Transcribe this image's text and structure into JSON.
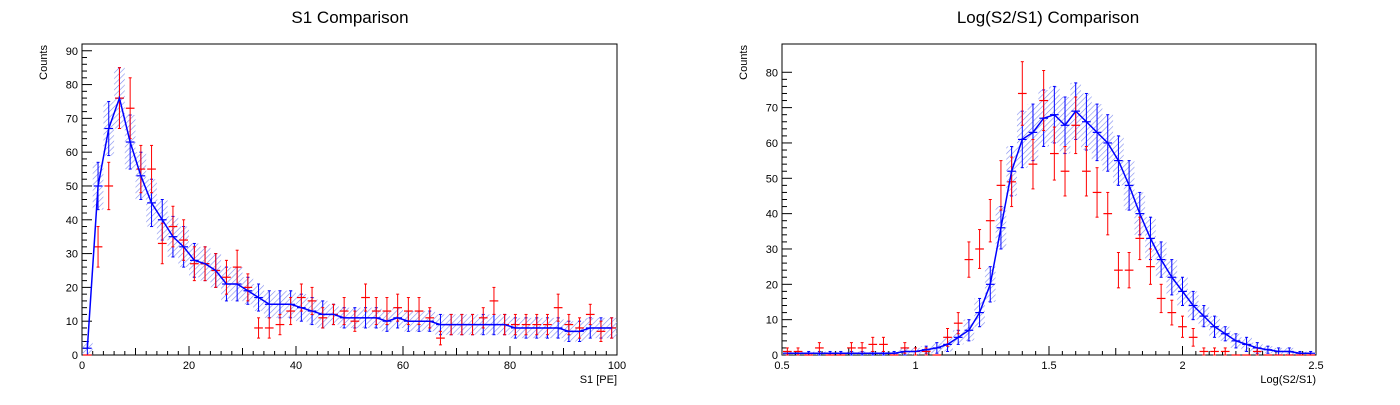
{
  "chart_data": [
    {
      "type": "line",
      "title": "S1 Comparison",
      "xlabel": "S1 [PE]",
      "ylabel": "Counts",
      "xlim": [
        0,
        100
      ],
      "ylim": [
        0,
        92
      ],
      "xticks": [
        0,
        20,
        40,
        60,
        80,
        100
      ],
      "xtick_labels": [
        "0",
        "20",
        "40",
        "60",
        "80",
        "100"
      ],
      "yticks": [
        0,
        10,
        20,
        30,
        40,
        50,
        60,
        70,
        80,
        90
      ],
      "ytick_labels": [
        "0",
        "10",
        "20",
        "30",
        "40",
        "50",
        "60",
        "70",
        "80",
        "90"
      ],
      "grid": false,
      "legend": "none",
      "series": [
        {
          "role": "model",
          "color": "#0000ff",
          "band_color": "#7f8cf0",
          "bin_width": 2,
          "x": [
            1,
            3,
            5,
            7,
            9,
            11,
            13,
            15,
            17,
            19,
            21,
            23,
            25,
            27,
            29,
            31,
            33,
            35,
            37,
            39,
            41,
            43,
            45,
            47,
            49,
            51,
            53,
            55,
            57,
            59,
            61,
            63,
            65,
            67,
            69,
            71,
            73,
            75,
            77,
            79,
            81,
            83,
            85,
            87,
            89,
            91,
            93,
            95,
            97,
            99
          ],
          "values": [
            2,
            50,
            67,
            76,
            63,
            53,
            45,
            40,
            35,
            32,
            28,
            27,
            25,
            21,
            21,
            19,
            17,
            15,
            15,
            15,
            14,
            13,
            12,
            12,
            11,
            11,
            11,
            11,
            10,
            11,
            10,
            10,
            10,
            9,
            9,
            9,
            9,
            9,
            9,
            9,
            8,
            8,
            8,
            8,
            8,
            7,
            7,
            8,
            8,
            8
          ],
          "errors": [
            2,
            7,
            8,
            9,
            8,
            7,
            7,
            6,
            6,
            6,
            5,
            5,
            5,
            5,
            5,
            4,
            4,
            4,
            4,
            4,
            4,
            4,
            4,
            3,
            3,
            3,
            3,
            3,
            3,
            3,
            3,
            3,
            3,
            3,
            3,
            3,
            3,
            3,
            3,
            3,
            3,
            3,
            3,
            3,
            3,
            3,
            3,
            3,
            3,
            3
          ]
        },
        {
          "role": "data",
          "color": "#ff0000",
          "bin_width": 2,
          "x": [
            1,
            3,
            5,
            7,
            9,
            11,
            13,
            15,
            17,
            19,
            21,
            23,
            25,
            27,
            29,
            31,
            33,
            35,
            37,
            39,
            41,
            43,
            45,
            47,
            49,
            51,
            53,
            55,
            57,
            59,
            61,
            63,
            65,
            67,
            69,
            71,
            73,
            75,
            77,
            79,
            81,
            83,
            85,
            87,
            89,
            91,
            93,
            95,
            97,
            99
          ],
          "values": [
            0,
            32,
            50,
            76,
            73,
            55,
            55,
            33,
            38,
            34,
            27,
            27,
            25,
            23,
            26,
            20,
            8,
            8,
            9,
            13,
            17,
            16,
            11,
            12,
            13,
            10,
            17,
            13,
            13,
            14,
            13,
            13,
            11,
            5,
            9,
            9,
            9,
            11,
            16,
            9,
            9,
            9,
            9,
            9,
            14,
            9,
            8,
            12,
            7,
            8
          ],
          "errors": [
            1,
            6,
            7,
            9,
            9,
            7,
            7,
            6,
            6,
            6,
            5,
            5,
            5,
            5,
            5,
            4,
            3,
            3,
            3,
            4,
            4,
            4,
            3,
            3,
            4,
            3,
            4,
            4,
            4,
            4,
            4,
            4,
            3,
            2,
            3,
            3,
            3,
            3,
            4,
            3,
            3,
            3,
            3,
            3,
            4,
            3,
            3,
            3,
            3,
            3
          ]
        }
      ]
    },
    {
      "type": "line",
      "title": "Log(S2/S1) Comparison",
      "xlabel": "Log(S2/S1)",
      "ylabel": "Counts",
      "xlim": [
        0.5,
        2.5
      ],
      "ylim": [
        0,
        88
      ],
      "xticks": [
        0.5,
        1,
        1.5,
        2,
        2.5
      ],
      "xtick_labels": [
        "0.5",
        "1",
        "1.5",
        "2",
        "2.5"
      ],
      "yticks": [
        0,
        10,
        20,
        30,
        40,
        50,
        60,
        70,
        80
      ],
      "ytick_labels": [
        "0",
        "10",
        "20",
        "30",
        "40",
        "50",
        "60",
        "70",
        "80"
      ],
      "grid": false,
      "legend": "none",
      "series": [
        {
          "role": "model",
          "color": "#0000ff",
          "band_color": "#7f8cf0",
          "bin_width": 0.04,
          "x": [
            0.52,
            0.56,
            0.6,
            0.64,
            0.68,
            0.72,
            0.76,
            0.8,
            0.84,
            0.88,
            0.92,
            0.96,
            1.0,
            1.04,
            1.08,
            1.12,
            1.16,
            1.2,
            1.24,
            1.28,
            1.32,
            1.36,
            1.4,
            1.44,
            1.48,
            1.52,
            1.56,
            1.6,
            1.64,
            1.68,
            1.72,
            1.76,
            1.8,
            1.84,
            1.88,
            1.92,
            1.96,
            2.0,
            2.04,
            2.08,
            2.12,
            2.16,
            2.2,
            2.24,
            2.28,
            2.32,
            2.36,
            2.4,
            2.44,
            2.48
          ],
          "values": [
            0.5,
            0.5,
            0.5,
            0.5,
            0.5,
            0.5,
            0.5,
            0.5,
            0.5,
            0.5,
            0.5,
            1,
            1,
            1.5,
            2,
            3,
            5,
            7,
            12,
            20,
            36,
            52,
            61,
            63,
            67,
            68,
            65,
            69,
            66,
            63,
            60,
            55,
            48,
            40,
            33,
            27,
            22,
            18,
            14,
            11,
            8,
            6,
            4,
            3,
            2,
            1.5,
            1,
            1,
            0.5,
            0.5
          ],
          "errors": [
            0.5,
            0.5,
            0.5,
            0.5,
            0.5,
            0.5,
            0.5,
            0.5,
            0.5,
            0.5,
            0.5,
            1,
            1,
            1,
            1.5,
            2,
            2,
            3,
            4,
            5,
            6,
            7,
            8,
            8,
            8,
            8,
            8,
            8,
            8,
            8,
            8,
            7,
            7,
            6,
            6,
            5,
            5,
            4,
            4,
            3,
            3,
            2,
            2,
            2,
            1.5,
            1,
            1,
            1,
            0.5,
            0.5
          ]
        },
        {
          "role": "data",
          "color": "#ff0000",
          "bin_width": 0.04,
          "x": [
            0.52,
            0.56,
            0.6,
            0.64,
            0.68,
            0.72,
            0.76,
            0.8,
            0.84,
            0.88,
            0.92,
            0.96,
            1.0,
            1.04,
            1.08,
            1.12,
            1.16,
            1.2,
            1.24,
            1.28,
            1.32,
            1.36,
            1.4,
            1.44,
            1.48,
            1.52,
            1.56,
            1.6,
            1.64,
            1.68,
            1.72,
            1.76,
            1.8,
            1.84,
            1.88,
            1.92,
            1.96,
            2.0,
            2.04,
            2.08,
            2.12,
            2.16,
            2.2,
            2.24,
            2.28,
            2.32,
            2.36,
            2.4,
            2.44,
            2.48
          ],
          "values": [
            1,
            1,
            0,
            2,
            0,
            0,
            2,
            2,
            3,
            3,
            0,
            2,
            1,
            1,
            0,
            5,
            9,
            27,
            30,
            38,
            48,
            49,
            74,
            54,
            72,
            57,
            52,
            65,
            52,
            46,
            40,
            24,
            24,
            33,
            25,
            16,
            12,
            8,
            5,
            1,
            1,
            1,
            0,
            0,
            1,
            0,
            0,
            0,
            0,
            0
          ],
          "errors": [
            1,
            1,
            0,
            1.5,
            0,
            0,
            1.5,
            1.5,
            2,
            2,
            0,
            1.5,
            1,
            1,
            0,
            2.5,
            3,
            5,
            5.5,
            6,
            7,
            7,
            9,
            7,
            8.5,
            7.5,
            7,
            8,
            7,
            7,
            6,
            5,
            5,
            6,
            5,
            4,
            3.5,
            3,
            2.5,
            1,
            1,
            1,
            0,
            0,
            1,
            0,
            0,
            0,
            0,
            0
          ]
        }
      ]
    }
  ]
}
